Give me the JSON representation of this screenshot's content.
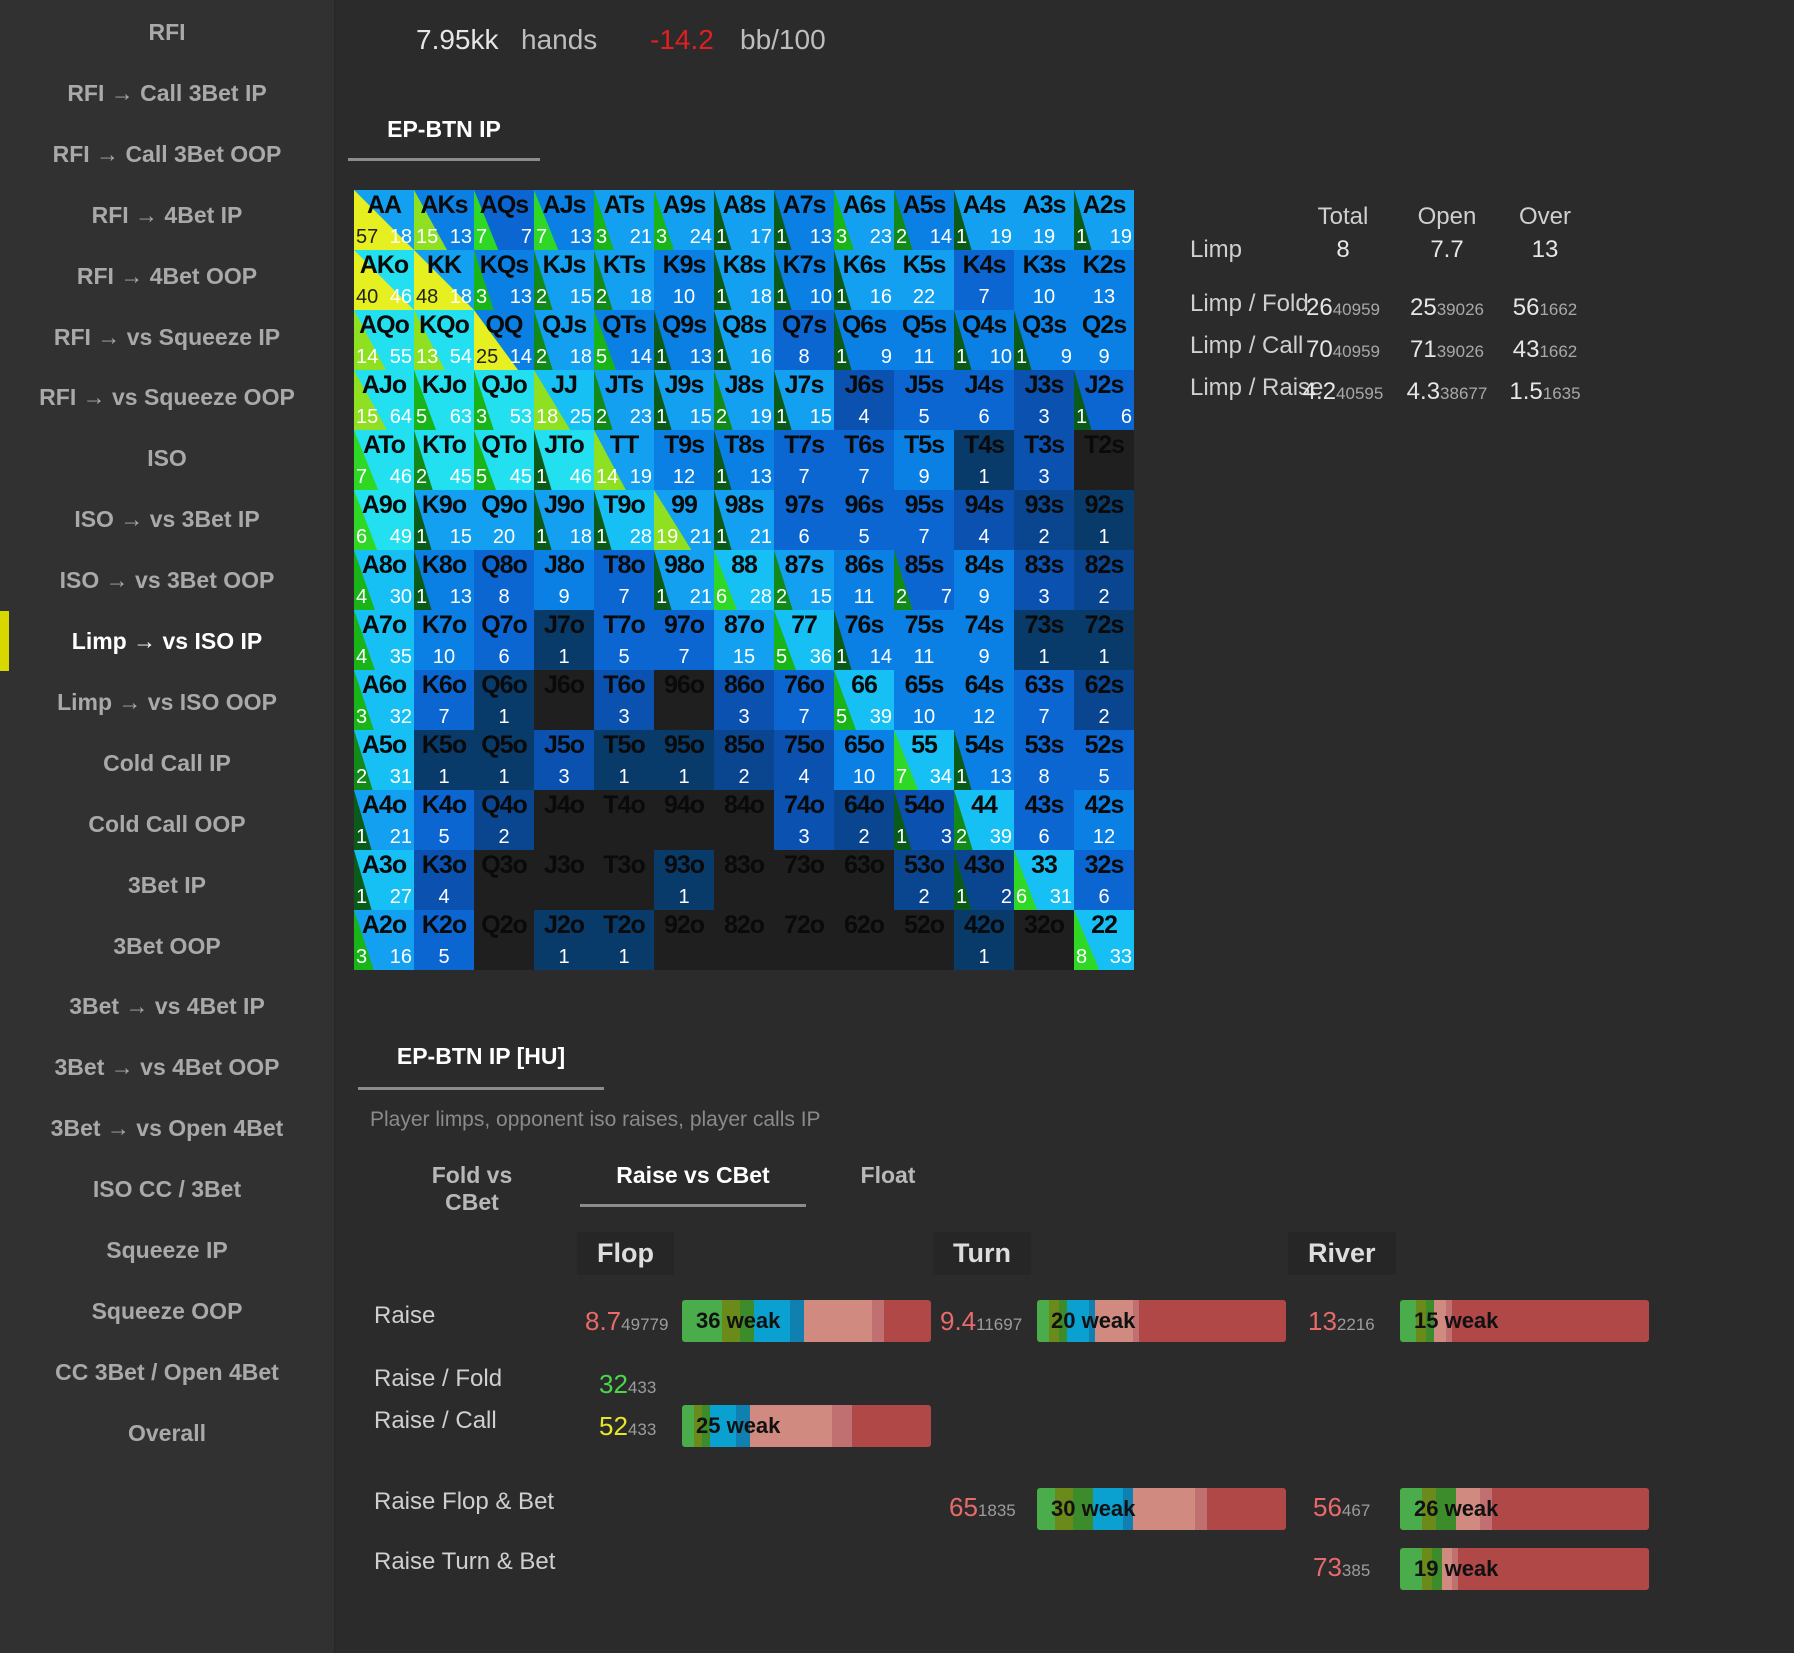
{
  "sidebar": {
    "items": [
      "RFI",
      "RFI → Call 3Bet IP",
      "RFI → Call 3Bet OOP",
      "RFI → 4Bet IP",
      "RFI → 4Bet OOP",
      "RFI → vs Squeeze IP",
      "RFI → vs Squeeze OOP",
      "ISO",
      "ISO → vs 3Bet IP",
      "ISO → vs 3Bet OOP",
      "Limp → vs ISO IP",
      "Limp → vs ISO OOP",
      "Cold Call IP",
      "Cold Call OOP",
      "3Bet IP",
      "3Bet OOP",
      "3Bet → vs 4Bet IP",
      "3Bet → vs 4Bet OOP",
      "3Bet → vs Open 4Bet",
      "ISO CC / 3Bet",
      "Squeeze IP",
      "Squeeze OOP",
      "CC 3Bet / Open 4Bet",
      "Overall"
    ],
    "active_index": 10,
    "accent": "#d8d800"
  },
  "header": {
    "hands_count": "7.95kk",
    "hands_label": "hands",
    "winrate": "-14.2",
    "winrate_unit": "bb/100",
    "winrate_color": "#e02020"
  },
  "range_tab": "EP-BTN IP",
  "grid": {
    "cells": [
      [
        "AA:57:18",
        "AKs:15:13",
        "AQs:7:7",
        "AJs:7:13",
        "ATs:3:21",
        "A9s:3:24",
        "A8s:1:17",
        "A7s:1:13",
        "A6s:3:23",
        "A5s:2:14",
        "A4s:1:19",
        "A3s::19",
        "A2s:1:19"
      ],
      [
        "AKo:40:46",
        "KK:48:18",
        "KQs:3:13",
        "KJs:2:15",
        "KTs:2:18",
        "K9s::10",
        "K8s:1:18",
        "K7s:1:10",
        "K6s:1:16",
        "K5s::22",
        "K4s::7",
        "K3s::10",
        "K2s::13"
      ],
      [
        "AQo:14:55",
        "KQo:13:54",
        "QQ:25:14",
        "QJs:2:18",
        "QTs:5:14",
        "Q9s:1:13",
        "Q8s:1:16",
        "Q7s::8",
        "Q6s:1:9",
        "Q5s::11",
        "Q4s:1:10",
        "Q3s:1:9",
        "Q2s::9"
      ],
      [
        "AJo:15:64",
        "KJo:5:63",
        "QJo:3:53",
        "JJ:18:25",
        "JTs:2:23",
        "J9s:1:15",
        "J8s:2:19",
        "J7s:1:15",
        "J6s::4",
        "J5s::5",
        "J4s::6",
        "J3s::3",
        "J2s:1:6"
      ],
      [
        "ATo:7:46",
        "KTo:2:45",
        "QTo:5:45",
        "JTo:1:46",
        "TT:14:19",
        "T9s::12",
        "T8s:1:13",
        "T7s::7",
        "T6s::7",
        "T5s::9",
        "T4s::1",
        "T3s::3",
        "T2s::"
      ],
      [
        "A9o:6:49",
        "K9o:1:15",
        "Q9o::20",
        "J9o:1:18",
        "T9o:1:28",
        "99:19:21",
        "98s:1:21",
        "97s::6",
        "96s::5",
        "95s::7",
        "94s::4",
        "93s::2",
        "92s::1"
      ],
      [
        "A8o:4:30",
        "K8o:1:13",
        "Q8o::8",
        "J8o::9",
        "T8o::7",
        "98o:1:21",
        "88:6:28",
        "87s:2:15",
        "86s::11",
        "85s:2:7",
        "84s::9",
        "83s::3",
        "82s::2"
      ],
      [
        "A7o:4:35",
        "K7o::10",
        "Q7o::6",
        "J7o::1",
        "T7o::5",
        "97o::7",
        "87o::15",
        "77:5:36",
        "76s:1:14",
        "75s::11",
        "74s::9",
        "73s::1",
        "72s::1"
      ],
      [
        "A6o:3:32",
        "K6o::7",
        "Q6o::1",
        "J6o::",
        "T6o::3",
        "96o::",
        "86o::3",
        "76o::7",
        "66:5:39",
        "65s::10",
        "64s::12",
        "63s::7",
        "62s::2"
      ],
      [
        "A5o:2:31",
        "K5o::1",
        "Q5o::1",
        "J5o::3",
        "T5o::1",
        "95o::1",
        "85o::2",
        "75o::4",
        "65o::10",
        "55:7:34",
        "54s:1:13",
        "53s::8",
        "52s::5"
      ],
      [
        "A4o:1:21",
        "K4o::5",
        "Q4o::2",
        "J4o::",
        "T4o::",
        "94o::",
        "84o::",
        "74o::3",
        "64o::2",
        "54o:1:3",
        "44:2:39",
        "43s::6",
        "42s::12"
      ],
      [
        "A3o:1:27",
        "K3o::4",
        "Q3o::",
        "J3o::",
        "T3o::",
        "93o::1",
        "83o::",
        "73o::",
        "63o::",
        "53o::2",
        "43o:1:2",
        "33:6:31",
        "32s::6"
      ],
      [
        "A2o:3:16",
        "K2o::5",
        "Q2o::",
        "J2o::1",
        "T2o::1",
        "92o::",
        "82o::",
        "72o::",
        "62o::",
        "52o::",
        "42o::1",
        "32o::",
        "22:8:33"
      ]
    ]
  },
  "limp_stats": {
    "headers": [
      "Total",
      "Open",
      "Over"
    ],
    "limp_label": "Limp",
    "limp_values": [
      "8",
      "7.7",
      "13"
    ],
    "rows": [
      {
        "label": "Limp / Fold",
        "values": [
          [
            "26",
            "40959"
          ],
          [
            "25",
            "39026"
          ],
          [
            "56",
            "1662"
          ]
        ]
      },
      {
        "label": "Limp / Call",
        "values": [
          [
            "70",
            "40959"
          ],
          [
            "71",
            "39026"
          ],
          [
            "43",
            "1662"
          ]
        ]
      },
      {
        "label": "Limp / Raise",
        "values": [
          [
            "4.2",
            "40595"
          ],
          [
            "4.3",
            "38677"
          ],
          [
            "1.5",
            "1635"
          ]
        ]
      }
    ]
  },
  "section_tab": "EP-BTN IP [HU]",
  "description": "Player limps, opponent iso raises, player calls IP",
  "subtabs": [
    "Fold vs CBet",
    "Raise vs CBet",
    "Float"
  ],
  "subtab_active": 1,
  "streets": [
    "Flop",
    "Turn",
    "River"
  ],
  "row_labels": [
    "Raise",
    "Raise / Fold",
    "Raise / Call",
    "Raise Flop & Bet",
    "Raise Turn & Bet"
  ],
  "metrics": {
    "raise_flop": {
      "value": "8.7",
      "count": "49779",
      "color": "#e86a6a",
      "bar": "36 weak"
    },
    "raise_turn": {
      "value": "9.4",
      "count": "11697",
      "color": "#e86a6a",
      "bar": "20 weak"
    },
    "raise_river": {
      "value": "13",
      "count": "2216",
      "color": "#e86a6a",
      "bar": "15 weak"
    },
    "raise_fold_flop": {
      "value": "32",
      "count": "433",
      "color": "#4cd64c"
    },
    "raise_call_flop": {
      "value": "52",
      "count": "433",
      "color": "#e6e62a",
      "bar": "25 weak"
    },
    "rfb_turn": {
      "value": "65",
      "count": "1835",
      "color": "#e86a6a",
      "bar": "30 weak"
    },
    "rfb_river": {
      "value": "56",
      "count": "467",
      "color": "#e86a6a",
      "bar": "26 weak"
    },
    "rtb_river": {
      "value": "73",
      "count": "385",
      "color": "#e86a6a",
      "bar": "19 weak"
    }
  }
}
